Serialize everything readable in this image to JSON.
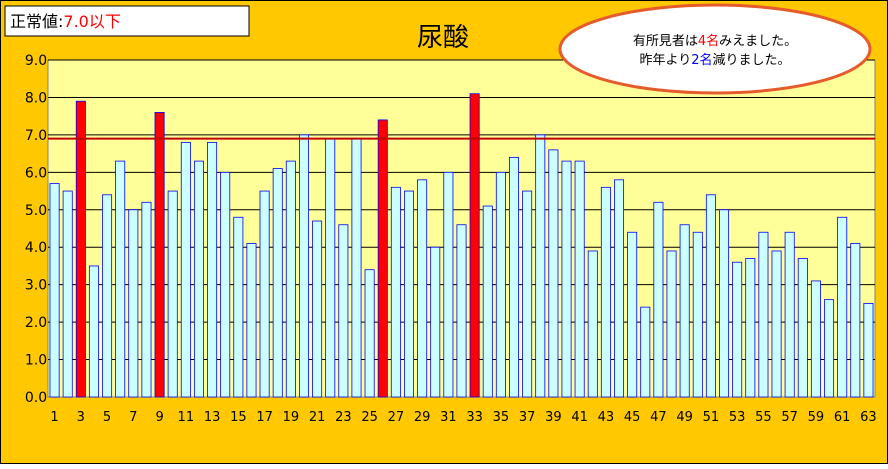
{
  "colors": {
    "background": "#FFC800",
    "plot_area": "#FFFF99",
    "bar_normal": "#CCFFFF",
    "bar_normal_border": "#0000FF",
    "bar_high": "#FF0000",
    "bar_high_border": "#0000FF",
    "reference_line": "#C00000",
    "gridline": "#000000",
    "callout_border": "#E55B2B",
    "emphasis_red": "#FF0000",
    "emphasis_blue": "#0000FF"
  },
  "legend_box": {
    "label": "正常値:",
    "value": "7.0以下"
  },
  "callout": {
    "line1_prefix": "有所見者は",
    "line1_number": "4名",
    "line1_suffix": "みえました。",
    "line2_prefix": "昨年より",
    "line2_number": "2名",
    "line2_suffix": "減りました。"
  },
  "chart_data": {
    "type": "bar",
    "title": "尿酸",
    "xlabel": "",
    "ylabel": "",
    "ylim": [
      0,
      9
    ],
    "yticks": [
      "0.0",
      "1.0",
      "2.0",
      "3.0",
      "4.0",
      "5.0",
      "6.0",
      "7.0",
      "8.0",
      "9.0"
    ],
    "xtick_labels": [
      "1",
      "3",
      "5",
      "7",
      "9",
      "11",
      "13",
      "15",
      "17",
      "19",
      "21",
      "23",
      "25",
      "27",
      "29",
      "31",
      "33",
      "35",
      "37",
      "39",
      "41",
      "43",
      "45",
      "47",
      "49",
      "51",
      "53",
      "55",
      "57",
      "59",
      "61",
      "63"
    ],
    "categories": [
      1,
      2,
      3,
      4,
      5,
      6,
      7,
      8,
      9,
      10,
      11,
      12,
      13,
      14,
      15,
      16,
      17,
      18,
      19,
      20,
      21,
      22,
      23,
      24,
      25,
      26,
      27,
      28,
      29,
      30,
      31,
      32,
      33,
      34,
      35,
      36,
      37,
      38,
      39,
      40,
      41,
      42,
      43,
      44,
      45,
      46,
      47,
      48,
      49,
      50,
      51,
      52,
      53,
      54,
      55,
      56,
      57,
      58,
      59,
      60,
      61,
      62,
      63
    ],
    "values": [
      5.7,
      5.5,
      7.9,
      3.5,
      5.4,
      6.3,
      5.0,
      5.2,
      7.6,
      5.5,
      6.8,
      6.3,
      6.8,
      6.0,
      4.8,
      4.1,
      5.5,
      6.1,
      6.3,
      7.0,
      4.7,
      6.9,
      4.6,
      6.9,
      3.4,
      7.4,
      5.6,
      5.5,
      5.8,
      4.0,
      6.0,
      4.6,
      8.1,
      5.1,
      6.0,
      6.4,
      5.5,
      7.0,
      6.6,
      6.3,
      6.3,
      3.9,
      5.6,
      5.8,
      4.4,
      2.4,
      5.2,
      3.9,
      4.6,
      4.4,
      5.4,
      5.0,
      3.6,
      3.7,
      4.4,
      3.9,
      4.4,
      3.7,
      3.1,
      2.6,
      4.8,
      4.1,
      2.5
    ],
    "threshold": 7.0,
    "reference_line": 6.9,
    "grid": true,
    "legend": "none"
  }
}
